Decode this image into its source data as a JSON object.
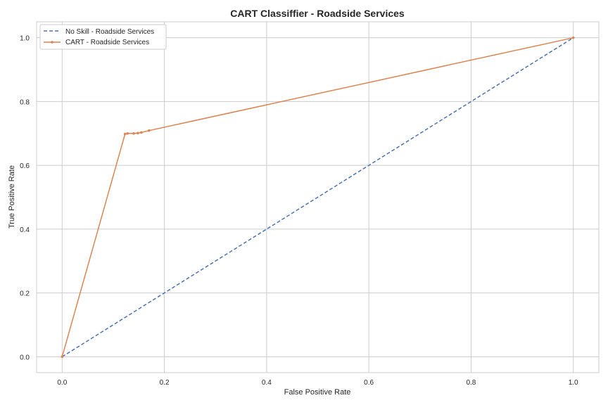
{
  "chart_data": {
    "type": "line",
    "title": "CART Classiffier - Roadside Services",
    "xlabel": "False Positive Rate",
    "ylabel": "True Positive Rate",
    "xlim": [
      -0.05,
      1.05
    ],
    "ylim": [
      -0.05,
      1.05
    ],
    "x_ticks": [
      0.0,
      0.2,
      0.4,
      0.6,
      0.8,
      1.0
    ],
    "y_ticks": [
      0.0,
      0.2,
      0.4,
      0.6,
      0.8,
      1.0
    ],
    "x_tick_labels": [
      "0.0",
      "0.2",
      "0.4",
      "0.6",
      "0.8",
      "1.0"
    ],
    "y_tick_labels": [
      "0.0",
      "0.2",
      "0.4",
      "0.6",
      "0.8",
      "1.0"
    ],
    "grid": true,
    "legend_position": "top-left",
    "series": [
      {
        "name": "No Skill - Roadside Services",
        "color": "#4c72b0",
        "line_style": "dashed",
        "marker": "none",
        "x": [
          0.0,
          1.0
        ],
        "y": [
          0.0,
          1.0
        ]
      },
      {
        "name": "CART - Roadside Services",
        "color": "#dd8452",
        "line_style": "solid",
        "marker": "dot",
        "x": [
          0.0,
          0.123,
          0.128,
          0.14,
          0.148,
          0.155,
          0.17,
          1.0
        ],
        "y": [
          0.0,
          0.698,
          0.7,
          0.7,
          0.701,
          0.703,
          0.709,
          1.0
        ]
      }
    ]
  }
}
